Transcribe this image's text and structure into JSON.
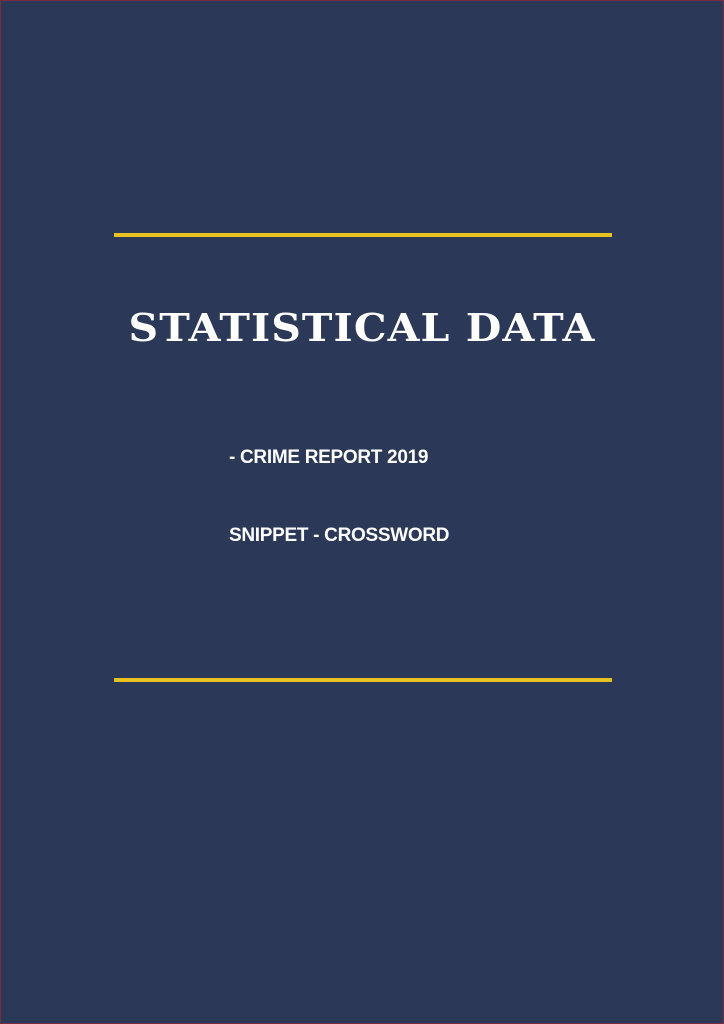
{
  "cover": {
    "title": "STATISTICAL DATA",
    "subtitle_line1": "- CRIME REPORT 2019",
    "subtitle_line2": "SNIPPET - CROSSWORD"
  },
  "colors": {
    "background": "#2c3858",
    "accent_rule": "#e6c11f",
    "text": "#ffffff",
    "border": "#7a2b3c"
  }
}
